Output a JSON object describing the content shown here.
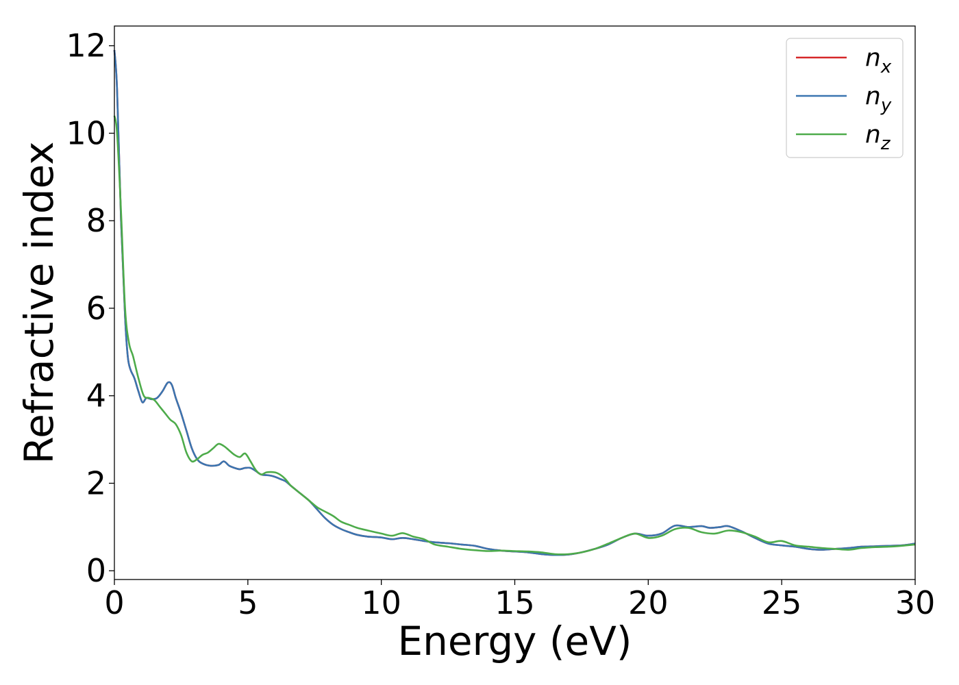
{
  "chart_data": {
    "type": "line",
    "title": "",
    "xlabel": "Energy (eV)",
    "ylabel": "Refractive index",
    "xlim": [
      0,
      30
    ],
    "ylim": [
      -0.2,
      12.45
    ],
    "xticks": [
      0,
      5,
      10,
      15,
      20,
      25,
      30
    ],
    "yticks": [
      0,
      2,
      4,
      6,
      8,
      10,
      12
    ],
    "grid": false,
    "legend_position": "top-right",
    "series": [
      {
        "name": "n_x",
        "legend_base": "n",
        "legend_sub": "x",
        "color": "#d62728",
        "x": [
          0,
          0.1,
          0.25,
          0.4,
          0.5,
          0.6,
          0.75,
          0.9,
          1.05,
          1.2,
          1.4,
          1.6,
          1.8,
          2.0,
          2.15,
          2.3,
          2.5,
          2.7,
          2.9,
          3.1,
          3.3,
          3.6,
          3.9,
          4.1,
          4.3,
          4.5,
          4.7,
          4.9,
          5.1,
          5.3,
          5.5,
          5.8,
          6.0,
          6.2,
          6.4,
          6.6,
          6.8,
          7.0,
          7.3,
          7.6,
          7.9,
          8.2,
          8.5,
          8.8,
          9.1,
          9.5,
          10.0,
          10.4,
          10.8,
          11.2,
          11.6,
          12.0,
          12.5,
          13.0,
          13.5,
          14.0,
          14.5,
          15.0,
          15.5,
          16.0,
          16.5,
          17.0,
          17.5,
          18.0,
          18.5,
          19.0,
          19.5,
          20.0,
          20.5,
          21.0,
          21.5,
          22.0,
          22.3,
          22.7,
          23.0,
          23.5,
          24.0,
          24.5,
          25.0,
          25.5,
          26.0,
          26.5,
          27.0,
          27.5,
          28.0,
          28.5,
          29.0,
          29.5,
          30.0
        ],
        "y": [
          11.9,
          11.0,
          8.0,
          5.8,
          4.9,
          4.6,
          4.4,
          4.1,
          3.85,
          3.95,
          3.92,
          3.95,
          4.1,
          4.3,
          4.25,
          3.95,
          3.6,
          3.2,
          2.8,
          2.55,
          2.45,
          2.4,
          2.42,
          2.5,
          2.4,
          2.35,
          2.32,
          2.35,
          2.35,
          2.28,
          2.2,
          2.18,
          2.15,
          2.1,
          2.05,
          1.95,
          1.85,
          1.75,
          1.6,
          1.4,
          1.2,
          1.05,
          0.95,
          0.88,
          0.82,
          0.78,
          0.76,
          0.72,
          0.75,
          0.72,
          0.68,
          0.65,
          0.63,
          0.6,
          0.57,
          0.5,
          0.46,
          0.44,
          0.42,
          0.38,
          0.36,
          0.37,
          0.42,
          0.5,
          0.6,
          0.75,
          0.85,
          0.8,
          0.85,
          1.03,
          1.0,
          1.02,
          0.98,
          1.0,
          1.02,
          0.9,
          0.75,
          0.62,
          0.58,
          0.55,
          0.5,
          0.48,
          0.5,
          0.52,
          0.55,
          0.56,
          0.57,
          0.58,
          0.62
        ]
      },
      {
        "name": "n_y",
        "legend_base": "n",
        "legend_sub": "y",
        "color": "#3a75b0",
        "x": [
          0,
          0.1,
          0.25,
          0.4,
          0.5,
          0.6,
          0.75,
          0.9,
          1.05,
          1.2,
          1.4,
          1.6,
          1.8,
          2.0,
          2.15,
          2.3,
          2.5,
          2.7,
          2.9,
          3.1,
          3.3,
          3.6,
          3.9,
          4.1,
          4.3,
          4.5,
          4.7,
          4.9,
          5.1,
          5.3,
          5.5,
          5.8,
          6.0,
          6.2,
          6.4,
          6.6,
          6.8,
          7.0,
          7.3,
          7.6,
          7.9,
          8.2,
          8.5,
          8.8,
          9.1,
          9.5,
          10.0,
          10.4,
          10.8,
          11.2,
          11.6,
          12.0,
          12.5,
          13.0,
          13.5,
          14.0,
          14.5,
          15.0,
          15.5,
          16.0,
          16.5,
          17.0,
          17.5,
          18.0,
          18.5,
          19.0,
          19.5,
          20.0,
          20.5,
          21.0,
          21.5,
          22.0,
          22.3,
          22.7,
          23.0,
          23.5,
          24.0,
          24.5,
          25.0,
          25.5,
          26.0,
          26.5,
          27.0,
          27.5,
          28.0,
          28.5,
          29.0,
          29.5,
          30.0
        ],
        "y": [
          11.9,
          11.0,
          8.0,
          5.8,
          4.9,
          4.6,
          4.4,
          4.1,
          3.85,
          3.95,
          3.92,
          3.95,
          4.1,
          4.3,
          4.25,
          3.95,
          3.6,
          3.2,
          2.8,
          2.55,
          2.45,
          2.4,
          2.42,
          2.5,
          2.4,
          2.35,
          2.32,
          2.35,
          2.35,
          2.28,
          2.2,
          2.18,
          2.15,
          2.1,
          2.05,
          1.95,
          1.85,
          1.75,
          1.6,
          1.4,
          1.2,
          1.05,
          0.95,
          0.88,
          0.82,
          0.78,
          0.76,
          0.72,
          0.75,
          0.72,
          0.68,
          0.65,
          0.63,
          0.6,
          0.57,
          0.5,
          0.46,
          0.44,
          0.42,
          0.38,
          0.36,
          0.37,
          0.42,
          0.5,
          0.6,
          0.75,
          0.85,
          0.8,
          0.85,
          1.03,
          1.0,
          1.02,
          0.98,
          1.0,
          1.02,
          0.9,
          0.75,
          0.62,
          0.58,
          0.55,
          0.5,
          0.48,
          0.5,
          0.52,
          0.55,
          0.56,
          0.57,
          0.58,
          0.62
        ]
      },
      {
        "name": "n_z",
        "legend_base": "n",
        "legend_sub": "z",
        "color": "#4dab4a",
        "x": [
          0,
          0.1,
          0.25,
          0.4,
          0.55,
          0.7,
          0.9,
          1.1,
          1.3,
          1.5,
          1.7,
          1.9,
          2.1,
          2.3,
          2.5,
          2.7,
          2.9,
          3.1,
          3.3,
          3.5,
          3.7,
          3.9,
          4.1,
          4.3,
          4.5,
          4.7,
          4.9,
          5.1,
          5.3,
          5.5,
          5.7,
          6.0,
          6.2,
          6.4,
          6.6,
          6.8,
          7.0,
          7.3,
          7.6,
          7.9,
          8.2,
          8.5,
          8.8,
          9.1,
          9.5,
          10.0,
          10.4,
          10.8,
          11.2,
          11.6,
          12.0,
          12.5,
          13.0,
          13.5,
          14.0,
          14.5,
          15.0,
          15.5,
          16.0,
          16.5,
          17.0,
          17.5,
          18.0,
          18.5,
          19.0,
          19.5,
          20.0,
          20.5,
          21.0,
          21.5,
          22.0,
          22.5,
          23.0,
          23.5,
          24.0,
          24.5,
          25.0,
          25.5,
          26.0,
          26.5,
          27.0,
          27.5,
          28.0,
          28.5,
          29.0,
          29.5,
          30.0
        ],
        "y": [
          10.4,
          10.0,
          8.2,
          6.0,
          5.2,
          4.9,
          4.4,
          4.0,
          3.95,
          3.9,
          3.75,
          3.6,
          3.45,
          3.35,
          3.1,
          2.7,
          2.5,
          2.55,
          2.65,
          2.7,
          2.8,
          2.9,
          2.85,
          2.75,
          2.65,
          2.6,
          2.68,
          2.5,
          2.3,
          2.2,
          2.25,
          2.25,
          2.2,
          2.1,
          1.95,
          1.85,
          1.75,
          1.6,
          1.45,
          1.35,
          1.25,
          1.12,
          1.05,
          0.98,
          0.92,
          0.85,
          0.8,
          0.86,
          0.78,
          0.72,
          0.6,
          0.55,
          0.5,
          0.47,
          0.45,
          0.46,
          0.45,
          0.44,
          0.42,
          0.38,
          0.38,
          0.42,
          0.5,
          0.62,
          0.75,
          0.85,
          0.75,
          0.8,
          0.95,
          0.98,
          0.88,
          0.85,
          0.92,
          0.88,
          0.78,
          0.65,
          0.68,
          0.58,
          0.55,
          0.52,
          0.5,
          0.48,
          0.52,
          0.54,
          0.55,
          0.57,
          0.6
        ]
      }
    ]
  }
}
